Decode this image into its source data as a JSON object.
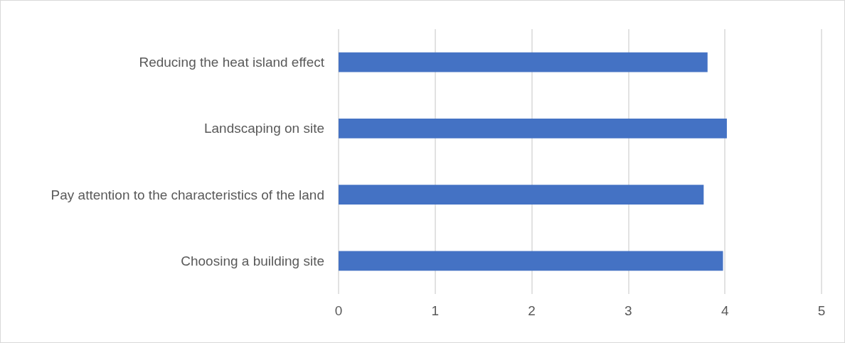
{
  "chart_data": {
    "type": "bar",
    "orientation": "horizontal",
    "categories": [
      "Reducing the heat island effect",
      "Landscaping on site",
      "Pay attention to the characteristics of the land",
      "Choosing a building site"
    ],
    "values": [
      3.82,
      4.02,
      3.78,
      3.98
    ],
    "color": "#4472c4",
    "xlim": [
      0,
      5
    ],
    "xticks": [
      0,
      1,
      2,
      3,
      4,
      5
    ],
    "grid": "x"
  }
}
